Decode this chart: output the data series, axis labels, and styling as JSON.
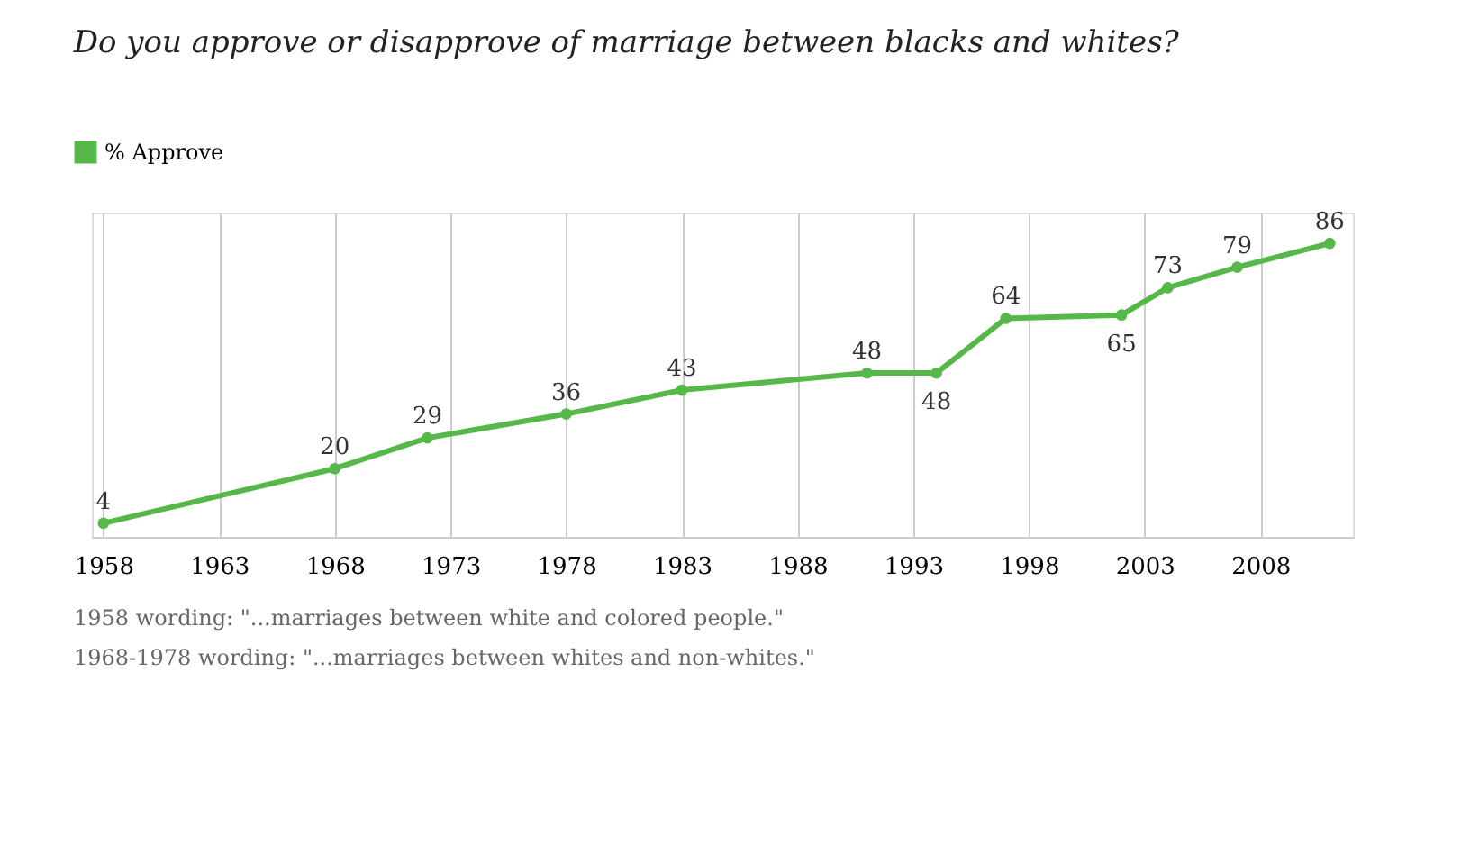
{
  "chart_data": {
    "type": "line",
    "title": "Do you approve or disapprove of marriage between blacks and whites?",
    "x": [
      1958,
      1968,
      1972,
      1978,
      1983,
      1991,
      1994,
      1997,
      2002,
      2004,
      2007,
      2011
    ],
    "series": [
      {
        "name": "% Approve",
        "color": "#55b848",
        "values": [
          4,
          20,
          29,
          36,
          43,
          48,
          48,
          64,
          65,
          73,
          79,
          86
        ]
      }
    ],
    "xlim": [
      1957.5,
      2012
    ],
    "xticks": [
      1958,
      1963,
      1968,
      1973,
      1978,
      1983,
      1988,
      1993,
      1998,
      2003,
      2008
    ],
    "ylim": [
      0,
      95
    ],
    "tick_labels": "x",
    "grid": "x",
    "legend": "top left",
    "marker": "circle",
    "data_labels": true,
    "annotations": [
      "1958 wording: \"...marriages between white and colored people.\"",
      "1968-1978 wording:  \"...marriages between whites and non-whites.\""
    ]
  }
}
